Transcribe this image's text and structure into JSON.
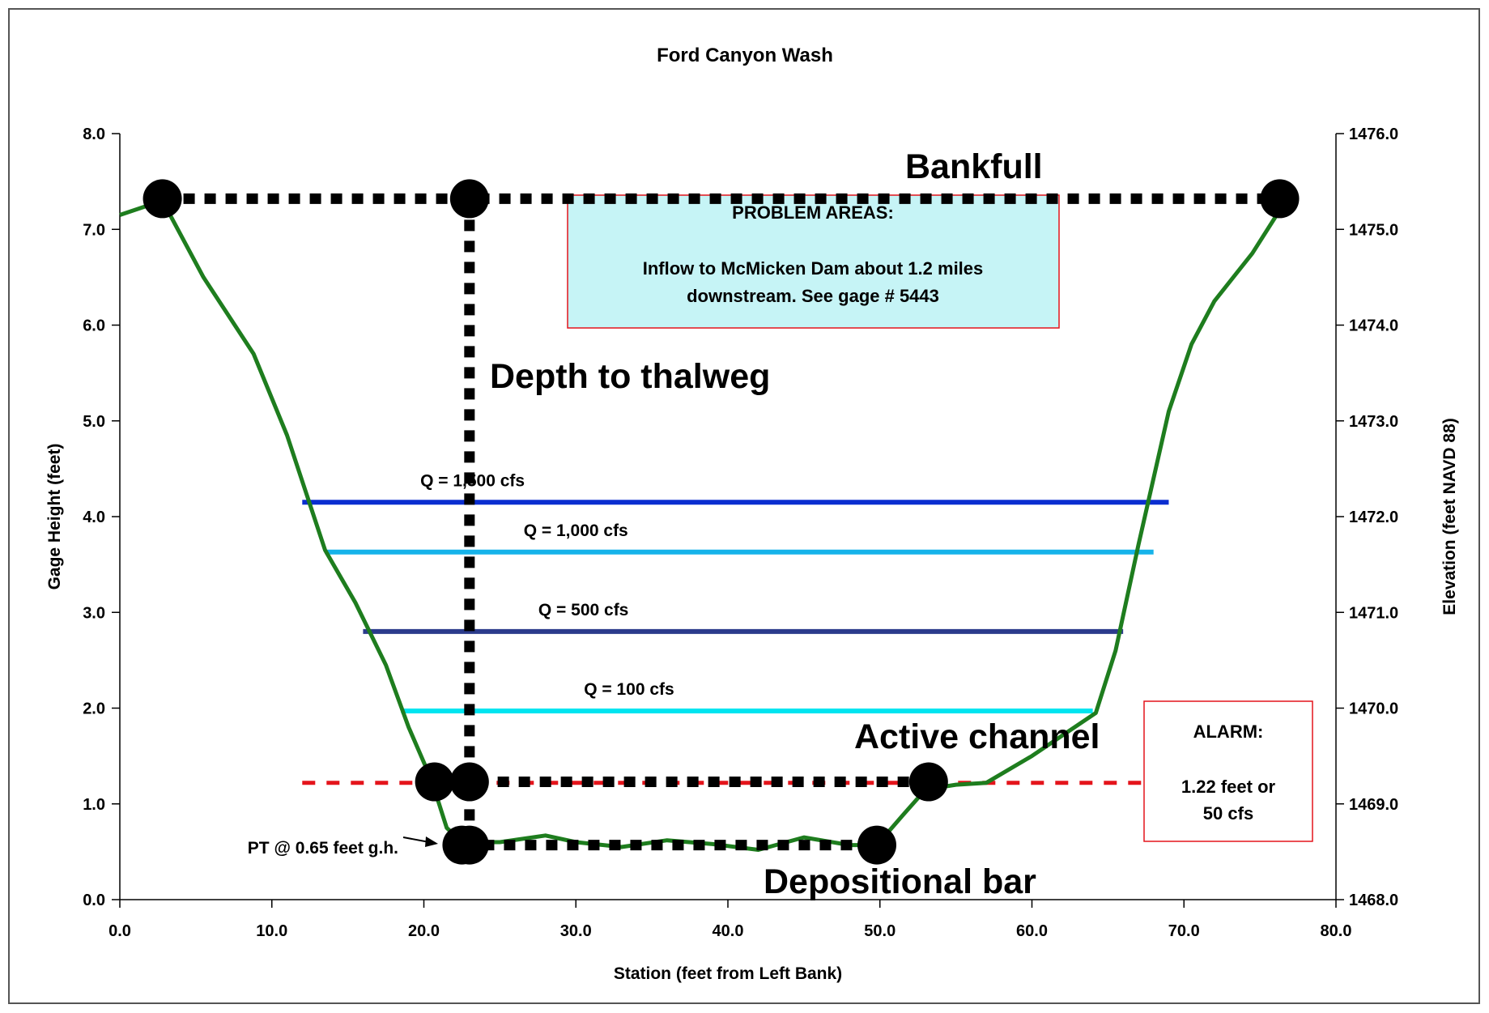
{
  "chart_data": {
    "type": "line",
    "title": "Ford Canyon Wash",
    "xlabel": "Station (feet from Left Bank)",
    "ylabel": "Gage Height (feet)",
    "y2label": "Elevation (feet NAVD 88)",
    "xlim": [
      0,
      80
    ],
    "ylim": [
      0,
      8
    ],
    "y2lim": [
      1468,
      1476
    ],
    "x_ticks": [
      "0.0",
      "10.0",
      "20.0",
      "30.0",
      "40.0",
      "50.0",
      "60.0",
      "70.0",
      "80.0"
    ],
    "y_ticks": [
      "0.0",
      "1.0",
      "2.0",
      "3.0",
      "4.0",
      "5.0",
      "6.0",
      "7.0",
      "8.0"
    ],
    "y2_ticks": [
      "1468.0",
      "1469.0",
      "1470.0",
      "1471.0",
      "1472.0",
      "1473.0",
      "1474.0",
      "1475.0",
      "1476.0"
    ],
    "grid": false,
    "cross_section": {
      "color": "#1e7d1e",
      "x": [
        0,
        2.8,
        5.5,
        8.8,
        11,
        13.5,
        15.5,
        17.5,
        19,
        20.5,
        21.5,
        22.5,
        23.3,
        25,
        28,
        30,
        33,
        36,
        39,
        42,
        45,
        48,
        49.8,
        51.5,
        53,
        55,
        57,
        60,
        64.2,
        65.5,
        67,
        69,
        70.5,
        72,
        74.5,
        76.3
      ],
      "y": [
        7.15,
        7.3,
        6.5,
        5.7,
        4.85,
        3.65,
        3.1,
        2.45,
        1.8,
        1.25,
        0.75,
        0.6,
        0.6,
        0.6,
        0.67,
        0.6,
        0.55,
        0.62,
        0.58,
        0.52,
        0.65,
        0.57,
        0.57,
        0.88,
        1.15,
        1.2,
        1.22,
        1.5,
        1.95,
        2.6,
        3.7,
        5.1,
        5.8,
        6.25,
        6.75,
        7.2
      ]
    },
    "discharge_lines": [
      {
        "label": "Q = 1,500 cfs",
        "y": 4.15,
        "x": [
          12.0,
          69.0
        ],
        "color": "#0a2ed0"
      },
      {
        "label": "Q = 1,000 cfs",
        "y": 3.63,
        "x": [
          13.5,
          68.0
        ],
        "color": "#16b3ea"
      },
      {
        "label": "Q = 500 cfs",
        "y": 2.8,
        "x": [
          16.0,
          66.0
        ],
        "color": "#2b3b8c"
      },
      {
        "label": "Q = 100 cfs",
        "y": 1.97,
        "x": [
          18.5,
          64.0
        ],
        "color": "#00e5f0"
      }
    ],
    "alarm_line": {
      "y": 1.22,
      "x": [
        12.0,
        67.5
      ],
      "color": "#e4141b"
    },
    "bankfull_line": {
      "label": "Bankfull",
      "y": 7.32,
      "x": [
        2.8,
        76.3
      ],
      "points": [
        2.8,
        23.0,
        76.3
      ]
    },
    "active_channel_line": {
      "label": "Active channel",
      "y": 1.23,
      "x": [
        20.7,
        53.2
      ],
      "points": [
        20.7,
        23.0,
        53.2
      ]
    },
    "depositional_bar_line": {
      "label": "Depositional bar",
      "y": 0.57,
      "x": [
        22.5,
        49.8
      ],
      "points": [
        22.5,
        23.0,
        49.8
      ]
    },
    "thalweg_line": {
      "label": "Depth to thalweg",
      "x": 23.0,
      "y": [
        0.57,
        7.32
      ]
    },
    "pt_annotation": {
      "label": "PT @ 0.65 feet g.h.",
      "target": [
        22.5,
        0.62
      ]
    },
    "problem_box": {
      "title": "PROBLEM AREAS:",
      "line1": "Inflow to McMicken Dam about 1.2 miles",
      "line2": "downstream.  See gage # 5443",
      "fill": "#c6f4f6",
      "border": "#e4141b"
    },
    "alarm_box": {
      "title": "ALARM:",
      "line1": "1.22 feet or",
      "line2": "50 cfs",
      "border": "#e4141b"
    }
  }
}
